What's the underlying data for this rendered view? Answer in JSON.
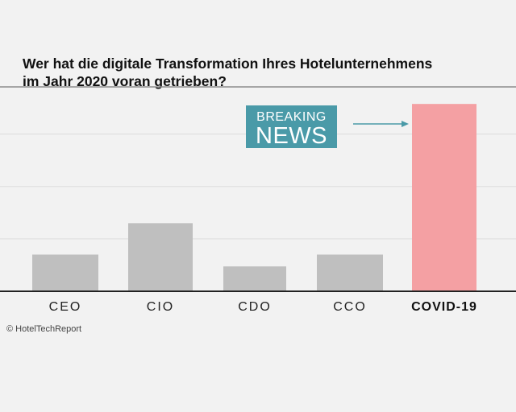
{
  "chart_data": {
    "type": "bar",
    "title_lines": [
      "Wer hat die digitale Transformation Ihres Hotelunternehmens",
      "im Jahr 2020 voran getrieben?"
    ],
    "categories": [
      "CEO",
      "CIO",
      "CDO",
      "CCO",
      "COVID-19"
    ],
    "values": [
      14,
      26,
      9.5,
      14,
      71.5
    ],
    "highlight_index": 4,
    "ylim": [
      0,
      78
    ],
    "gridlines": [
      0,
      20,
      40,
      60
    ],
    "grid": true,
    "colors": {
      "bar": "#bfbfbf",
      "highlight": "#f4a0a3",
      "grid": "#dcdcdc",
      "top_line": "#8c8c8c",
      "baseline": "#222222",
      "arrow": "#4a9aa8"
    },
    "annotation": {
      "line1": "BREAKING",
      "line2": "NEWS",
      "background": "#4a9aa8"
    },
    "source": "© HotelTechReport"
  }
}
